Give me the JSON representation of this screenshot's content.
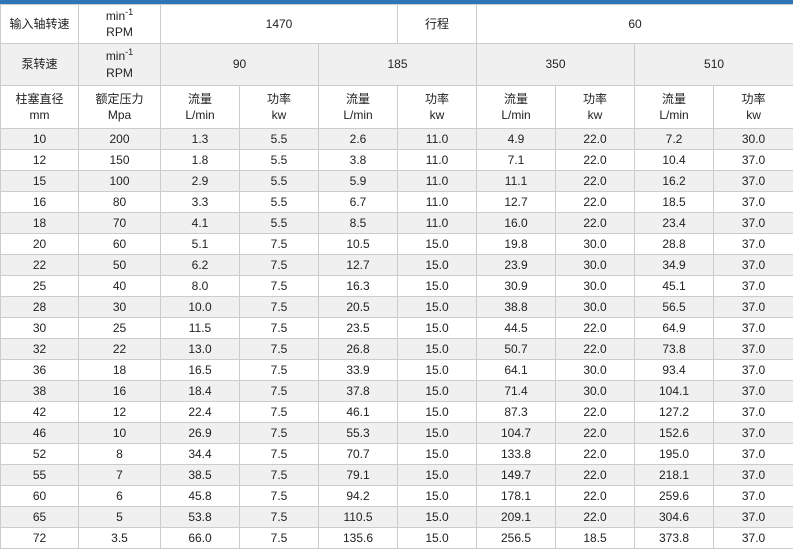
{
  "colors": {
    "accent_bar": "#2e75b5",
    "stripe": "#f0f0f0",
    "border": "#cccccc",
    "text": "#222222"
  },
  "table": {
    "input_shaft_row": {
      "label": "输入轴转速",
      "unit_base": "min",
      "unit_sup": "-1",
      "unit_line2": "RPM",
      "value": "1470",
      "stroke_label": "行程",
      "stroke_value": "60"
    },
    "pump_speed_row": {
      "label": "泵转速",
      "unit_base": "min",
      "unit_sup": "-1",
      "unit_line2": "RPM",
      "speeds": [
        "90",
        "185",
        "350",
        "510"
      ]
    },
    "header_row": {
      "col1_line1": "柱塞直径",
      "col1_line2": "mm",
      "col2_line1": "额定压力",
      "col2_line2": "Mpa",
      "flow_line1": "流量",
      "flow_line2": "L/min",
      "power_line1": "功率",
      "power_line2": "kw"
    },
    "rows": [
      [
        "10",
        "200",
        "1.3",
        "5.5",
        "2.6",
        "11.0",
        "4.9",
        "22.0",
        "7.2",
        "30.0"
      ],
      [
        "12",
        "150",
        "1.8",
        "5.5",
        "3.8",
        "11.0",
        "7.1",
        "22.0",
        "10.4",
        "37.0"
      ],
      [
        "15",
        "100",
        "2.9",
        "5.5",
        "5.9",
        "11.0",
        "11.1",
        "22.0",
        "16.2",
        "37.0"
      ],
      [
        "16",
        "80",
        "3.3",
        "5.5",
        "6.7",
        "11.0",
        "12.7",
        "22.0",
        "18.5",
        "37.0"
      ],
      [
        "18",
        "70",
        "4.1",
        "5.5",
        "8.5",
        "11.0",
        "16.0",
        "22.0",
        "23.4",
        "37.0"
      ],
      [
        "20",
        "60",
        "5.1",
        "7.5",
        "10.5",
        "15.0",
        "19.8",
        "30.0",
        "28.8",
        "37.0"
      ],
      [
        "22",
        "50",
        "6.2",
        "7.5",
        "12.7",
        "15.0",
        "23.9",
        "30.0",
        "34.9",
        "37.0"
      ],
      [
        "25",
        "40",
        "8.0",
        "7.5",
        "16.3",
        "15.0",
        "30.9",
        "30.0",
        "45.1",
        "37.0"
      ],
      [
        "28",
        "30",
        "10.0",
        "7.5",
        "20.5",
        "15.0",
        "38.8",
        "30.0",
        "56.5",
        "37.0"
      ],
      [
        "30",
        "25",
        "11.5",
        "7.5",
        "23.5",
        "15.0",
        "44.5",
        "22.0",
        "64.9",
        "37.0"
      ],
      [
        "32",
        "22",
        "13.0",
        "7.5",
        "26.8",
        "15.0",
        "50.7",
        "22.0",
        "73.8",
        "37.0"
      ],
      [
        "36",
        "18",
        "16.5",
        "7.5",
        "33.9",
        "15.0",
        "64.1",
        "30.0",
        "93.4",
        "37.0"
      ],
      [
        "38",
        "16",
        "18.4",
        "7.5",
        "37.8",
        "15.0",
        "71.4",
        "30.0",
        "104.1",
        "37.0"
      ],
      [
        "42",
        "12",
        "22.4",
        "7.5",
        "46.1",
        "15.0",
        "87.3",
        "22.0",
        "127.2",
        "37.0"
      ],
      [
        "46",
        "10",
        "26.9",
        "7.5",
        "55.3",
        "15.0",
        "104.7",
        "22.0",
        "152.6",
        "37.0"
      ],
      [
        "52",
        "8",
        "34.4",
        "7.5",
        "70.7",
        "15.0",
        "133.8",
        "22.0",
        "195.0",
        "37.0"
      ],
      [
        "55",
        "7",
        "38.5",
        "7.5",
        "79.1",
        "15.0",
        "149.7",
        "22.0",
        "218.1",
        "37.0"
      ],
      [
        "60",
        "6",
        "45.8",
        "7.5",
        "94.2",
        "15.0",
        "178.1",
        "22.0",
        "259.6",
        "37.0"
      ],
      [
        "65",
        "5",
        "53.8",
        "7.5",
        "110.5",
        "15.0",
        "209.1",
        "22.0",
        "304.6",
        "37.0"
      ],
      [
        "72",
        "3.5",
        "66.0",
        "7.5",
        "135.6",
        "15.0",
        "256.5",
        "18.5",
        "373.8",
        "37.0"
      ]
    ]
  }
}
